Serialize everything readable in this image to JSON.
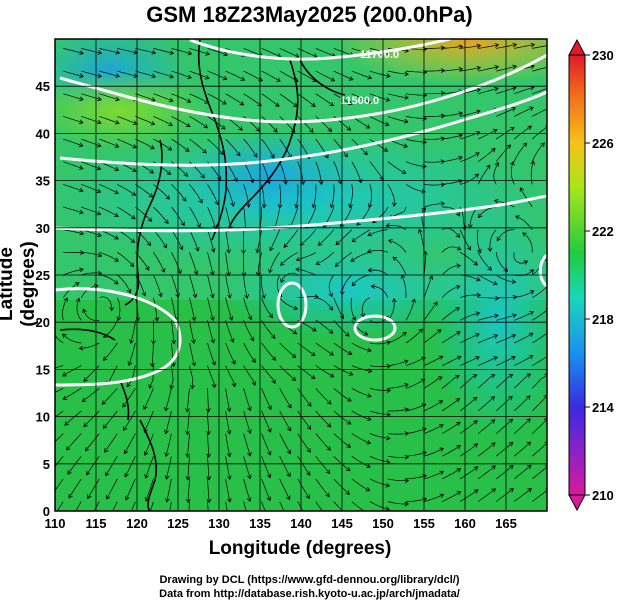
{
  "title": "GSM 18Z23May2025 (200.0hPa)",
  "map": {
    "xlabel": "Longitude (degrees)",
    "ylabel": "Latitude  (degrees)",
    "lon_range": [
      110,
      170
    ],
    "lat_range": [
      0,
      50
    ],
    "x_ticks": [
      "110",
      "115",
      "120",
      "125",
      "130",
      "135",
      "140",
      "145",
      "150",
      "155",
      "160",
      "165"
    ],
    "y_ticks": [
      "0",
      "5",
      "10",
      "15",
      "20",
      "25",
      "30",
      "35",
      "40",
      "45"
    ],
    "contour_labels": [
      "11700.0",
      "11500.0"
    ],
    "field": "air temperature (shaded)",
    "vectors": "wind streamlines",
    "contours": "geopotential height"
  },
  "colorbar": {
    "ticks": [
      "230",
      "226",
      "222",
      "218",
      "214",
      "210"
    ],
    "range": [
      210,
      230
    ],
    "colors": [
      "#d81a9c",
      "#3a2ae0",
      "#1a8ff0",
      "#18d8b8",
      "#20cc3c",
      "#a8e61a",
      "#f7c21a",
      "#f0641a",
      "#e01a2a"
    ]
  },
  "credits": {
    "line1": "Drawing by DCL (https://www.gfd-dennou.org/library/dcl/)",
    "line2": "Data from http://database.rish.kyoto-u.ac.jp/arch/jmadata/"
  }
}
